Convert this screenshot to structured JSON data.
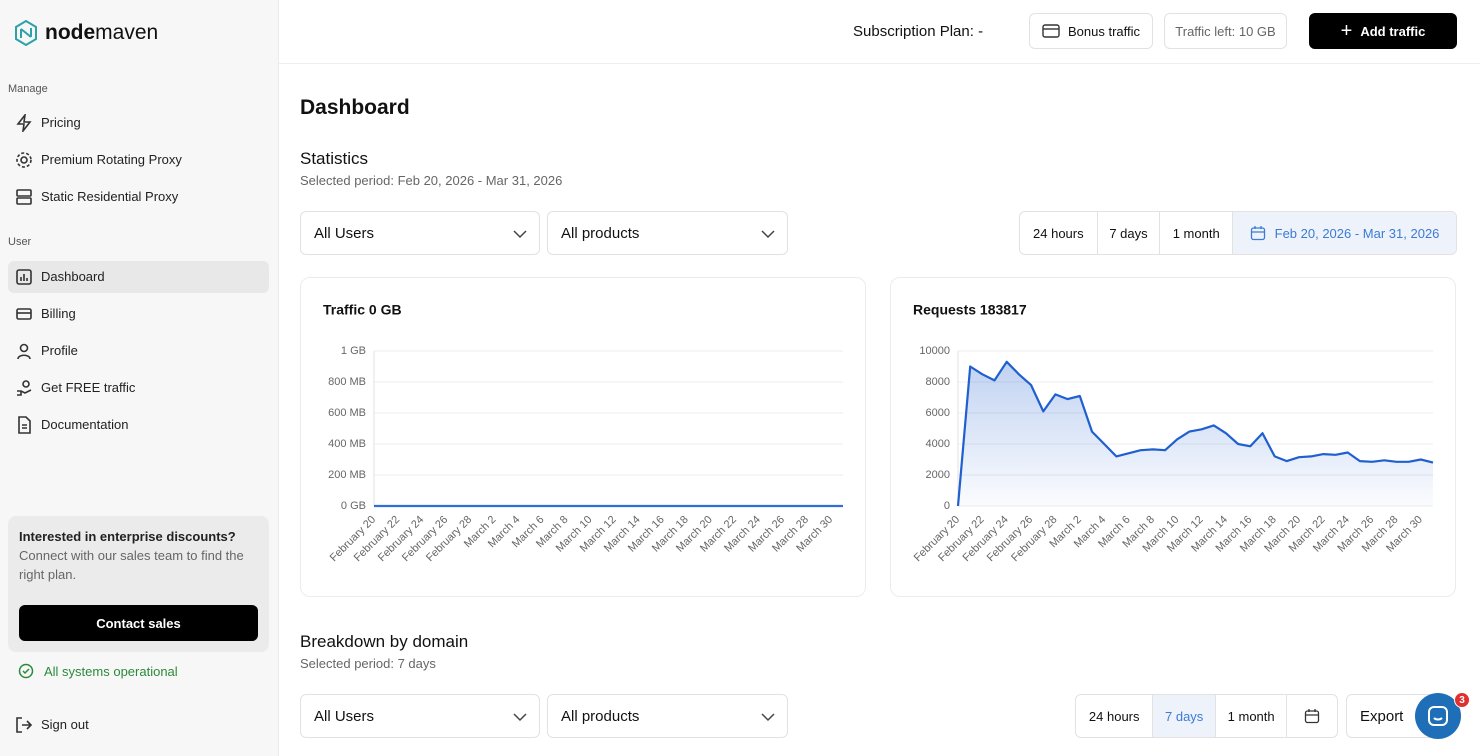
{
  "logo": {
    "parts": [
      "node",
      "maven"
    ]
  },
  "sidebar": {
    "sections": [
      {
        "title": "Manage",
        "items": [
          "Pricing",
          "Premium Rotating Proxy",
          "Static Residential Proxy"
        ]
      },
      {
        "title": "User",
        "items": [
          "Dashboard",
          "Billing",
          "Profile",
          "Get FREE traffic",
          "Documentation"
        ]
      }
    ],
    "promo": {
      "title": "Interested in enterprise discounts?",
      "text": "Connect with our sales team to find the right plan.",
      "button": "Contact sales"
    },
    "status": "All systems operational",
    "sign_out": "Sign out"
  },
  "topbar": {
    "plan": "Subscription Plan: -",
    "bonus": "Bonus traffic",
    "traffic_left": "Traffic left: 10 GB",
    "add": "Add traffic"
  },
  "page_title": "Dashboard",
  "statistics": {
    "title": "Statistics",
    "period": "Selected period: Feb 20, 2026 - Mar 31, 2026",
    "filters": [
      "All Users",
      "All products"
    ],
    "ranges": [
      "24 hours",
      "7 days",
      "1 month"
    ],
    "date_range": "Feb 20, 2026 - Mar 31, 2026"
  },
  "breakdown": {
    "title": "Breakdown by domain",
    "period": "Selected period: 7 days",
    "filters": [
      "All Users",
      "All products"
    ],
    "ranges": [
      "24 hours",
      "7 days",
      "1 month"
    ],
    "export": "Export",
    "badge": "3"
  },
  "chart_data": [
    {
      "type": "line",
      "title": "Traffic 0 GB",
      "color": "#2f6fd6",
      "fill_area": false,
      "grid": true,
      "categories": [
        "February 20",
        null,
        "February 22",
        null,
        "February 24",
        null,
        "February 26",
        null,
        "February 28",
        null,
        "March 2",
        null,
        "March 4",
        null,
        "March 6",
        null,
        "March 8",
        null,
        "March 10",
        null,
        "March 12",
        null,
        "March 14",
        null,
        "March 16",
        null,
        "March 18",
        null,
        "March 20",
        null,
        "March 22",
        null,
        "March 24",
        null,
        "March 26",
        null,
        "March 28",
        null,
        "March 30",
        null
      ],
      "values": [
        0,
        0,
        0,
        0,
        0,
        0,
        0,
        0,
        0,
        0,
        0,
        0,
        0,
        0,
        0,
        0,
        0,
        0,
        0,
        0,
        0,
        0,
        0,
        0,
        0,
        0,
        0,
        0,
        0,
        0,
        0,
        0,
        0,
        0,
        0,
        0,
        0,
        0,
        0,
        0
      ],
      "ylim": [
        0,
        1000
      ],
      "yticks": [
        {
          "value": 0,
          "label": "0 GB"
        },
        {
          "value": 200,
          "label": "200 MB"
        },
        {
          "value": 400,
          "label": "400 MB"
        },
        {
          "value": 600,
          "label": "600 MB"
        },
        {
          "value": 800,
          "label": "800 MB"
        },
        {
          "value": 1000,
          "label": "1 GB"
        }
      ]
    },
    {
      "type": "line",
      "title": "Requests 183817",
      "color": "#1f5fcf",
      "fill_area": true,
      "grid": true,
      "categories": [
        "February 20",
        null,
        "February 22",
        null,
        "February 24",
        null,
        "February 26",
        null,
        "February 28",
        null,
        "March 2",
        null,
        "March 4",
        null,
        "March 6",
        null,
        "March 8",
        null,
        "March 10",
        null,
        "March 12",
        null,
        "March 14",
        null,
        "March 16",
        null,
        "March 18",
        null,
        "March 20",
        null,
        "March 22",
        null,
        "March 24",
        null,
        "March 26",
        null,
        "March 28",
        null,
        "March 30",
        null
      ],
      "values": [
        0,
        9000,
        8500,
        8100,
        9300,
        8500,
        7800,
        6100,
        7200,
        6900,
        7100,
        4800,
        4000,
        3200,
        3400,
        3600,
        3650,
        3600,
        4300,
        4800,
        4950,
        5200,
        4700,
        4000,
        3850,
        4700,
        3200,
        2900,
        3150,
        3200,
        3350,
        3300,
        3450,
        2900,
        2850,
        2950,
        2850,
        2850,
        3000,
        2800
      ],
      "ylim": [
        0,
        10000
      ],
      "yticks": [
        0,
        2000,
        4000,
        6000,
        8000,
        10000
      ]
    }
  ]
}
